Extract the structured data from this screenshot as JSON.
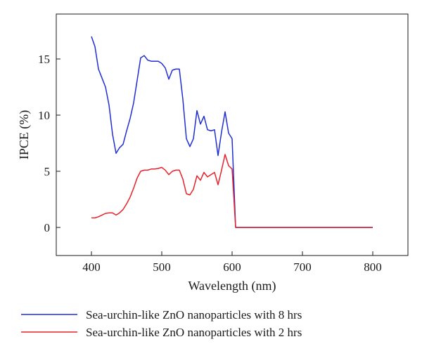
{
  "chart_data": {
    "type": "line",
    "xlabel": "Wavelength (nm)",
    "ylabel": "IPCE (%)",
    "xlim": [
      350,
      850
    ],
    "ylim": [
      -2.5,
      19
    ],
    "xticks": [
      400,
      500,
      600,
      700,
      800
    ],
    "yticks": [
      0,
      5,
      10,
      15
    ],
    "grid": false,
    "legend_position": "below",
    "series": [
      {
        "name": "Sea-urchin-like ZnO nanoparticles with 8 hrs",
        "color": "#1f2ed6",
        "x": [
          400,
          405,
          410,
          415,
          420,
          425,
          430,
          435,
          440,
          445,
          450,
          455,
          460,
          465,
          470,
          475,
          480,
          485,
          490,
          495,
          500,
          505,
          510,
          515,
          520,
          525,
          530,
          535,
          540,
          545,
          550,
          555,
          560,
          565,
          570,
          575,
          580,
          585,
          590,
          595,
          600,
          605,
          610,
          620,
          650,
          700,
          750,
          800
        ],
        "y": [
          17.0,
          16.1,
          14.1,
          13.3,
          12.5,
          10.9,
          8.3,
          6.6,
          7.1,
          7.4,
          8.6,
          9.7,
          11.1,
          13.1,
          15.1,
          15.3,
          14.9,
          14.8,
          14.8,
          14.8,
          14.6,
          14.2,
          13.2,
          14.0,
          14.1,
          14.1,
          11.4,
          7.9,
          7.2,
          7.9,
          10.4,
          9.2,
          9.9,
          8.7,
          8.6,
          8.7,
          6.4,
          8.5,
          10.3,
          8.4,
          7.9,
          0.0,
          0.0,
          0.0,
          0.0,
          0.0,
          0.0,
          0.0
        ]
      },
      {
        "name": "Sea-urchin-like ZnO nanoparticles with 2 hrs",
        "color": "#e8212a",
        "x": [
          400,
          405,
          410,
          415,
          420,
          425,
          430,
          435,
          440,
          445,
          450,
          455,
          460,
          465,
          470,
          475,
          480,
          485,
          490,
          495,
          500,
          505,
          510,
          515,
          520,
          525,
          530,
          535,
          540,
          545,
          550,
          555,
          560,
          565,
          570,
          575,
          580,
          585,
          590,
          595,
          600,
          605,
          610,
          620,
          650,
          700,
          750,
          800
        ],
        "y": [
          0.85,
          0.85,
          0.95,
          1.1,
          1.25,
          1.3,
          1.3,
          1.1,
          1.3,
          1.6,
          2.1,
          2.7,
          3.5,
          4.4,
          5.0,
          5.1,
          5.1,
          5.2,
          5.2,
          5.25,
          5.35,
          5.1,
          4.7,
          5.0,
          5.1,
          5.1,
          4.3,
          3.0,
          2.9,
          3.4,
          4.6,
          4.2,
          4.9,
          4.5,
          4.7,
          4.9,
          3.8,
          5.1,
          6.5,
          5.5,
          5.2,
          0.0,
          0.0,
          0.0,
          0.0,
          0.0,
          0.0,
          0.0
        ]
      }
    ]
  }
}
